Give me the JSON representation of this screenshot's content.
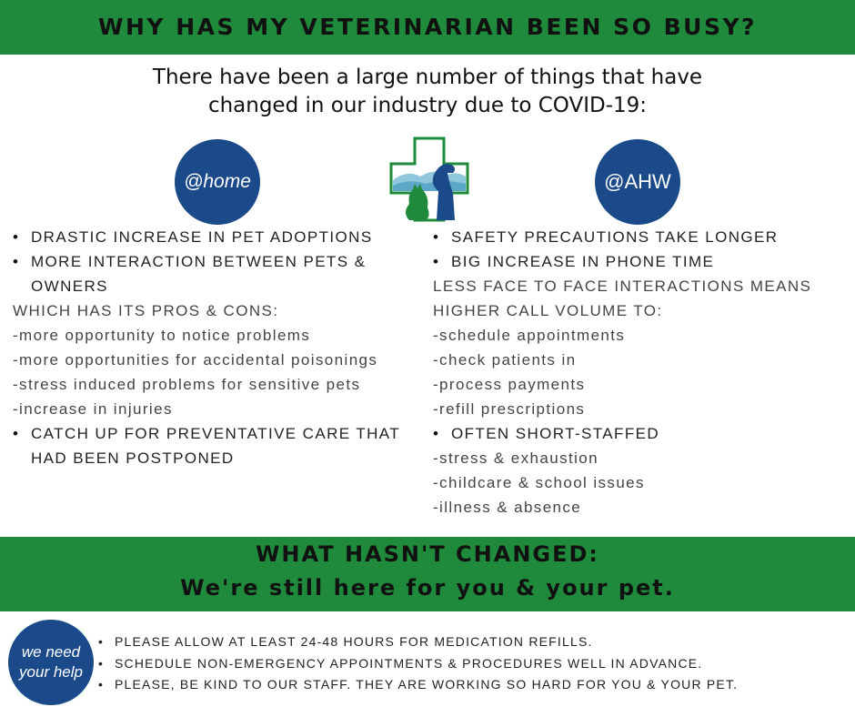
{
  "header": {
    "title": "WHY HAS MY VETERINARIAN BEEN SO BUSY?"
  },
  "intro": {
    "lines": [
      "There have been a large number of things that have",
      "changed in our industry due to COVID-19:"
    ]
  },
  "left": {
    "badge": "@home",
    "items": [
      {
        "text": "DRASTIC INCREASE IN PET ADOPTIONS",
        "sub": []
      },
      {
        "text": "MORE INTERACTION BETWEEN PETS & OWNERS",
        "sub": [
          "WHICH HAS ITS PROS & CONS:",
          "-more opportunity to notice problems",
          "-more opportunities for accidental poisonings",
          "-stress induced problems for sensitive pets",
          "-increase in injuries"
        ]
      },
      {
        "text": "CATCH UP FOR PREVENTATIVE CARE THAT HAD BEEN POSTPONED",
        "sub": []
      }
    ]
  },
  "right": {
    "badge": "@AHW",
    "items": [
      {
        "text": "SAFETY PRECAUTIONS TAKE LONGER",
        "sub": []
      },
      {
        "text": "BIG INCREASE IN PHONE TIME",
        "sub": [
          "LESS FACE TO FACE INTERACTIONS MEANS HIGHER CALL VOLUME TO:",
          "-schedule appointments",
          "-check patients in",
          "-process payments",
          "-refill prescriptions"
        ]
      },
      {
        "text": "OFTEN SHORT-STAFFED",
        "sub": [
          "-stress & exhaustion",
          "-childcare & school issues",
          "-illness & absence"
        ]
      }
    ]
  },
  "footer": {
    "title": "WHAT HASN'T CHANGED:",
    "subtitle": "We're still here for you & your pet."
  },
  "help": {
    "badge_lines": [
      "we need",
      "your help"
    ],
    "items": [
      "PLEASE ALLOW AT LEAST 24-48 HOURS FOR MEDICATION REFILLS.",
      "SCHEDULE NON-EMERGENCY APPOINTMENTS & PROCEDURES WELL IN ADVANCE.",
      "PLEASE, BE KIND TO OUR STAFF.  THEY ARE WORKING SO HARD FOR YOU & YOUR PET."
    ]
  }
}
